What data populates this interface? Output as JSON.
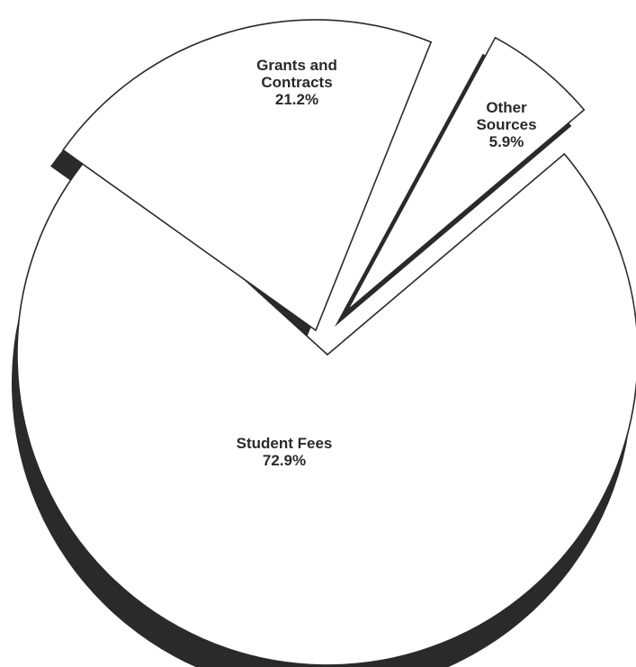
{
  "chart_data": {
    "type": "pie",
    "style": "exploded-3d",
    "slices": [
      {
        "label_lines": [
          "Student Fees"
        ],
        "pct_label": "72.9%",
        "value": 72.9
      },
      {
        "label_lines": [
          "Grants and",
          "Contracts"
        ],
        "pct_label": "21.2%",
        "value": 21.2
      },
      {
        "label_lines": [
          "Other",
          "Sources"
        ],
        "pct_label": "5.9%",
        "value": 5.9
      }
    ]
  },
  "colors": {
    "face": "#ffffff",
    "outline": "#2a2a2a",
    "shadow": "#2a2a2a",
    "text": "#2a2a2a"
  }
}
